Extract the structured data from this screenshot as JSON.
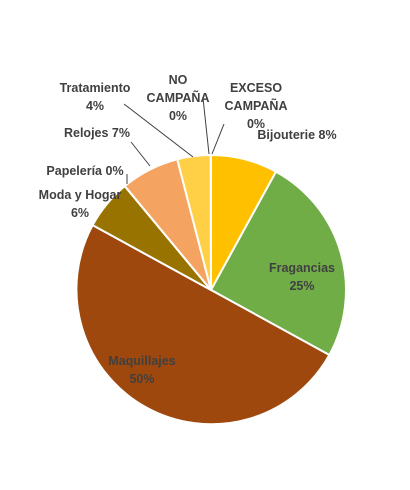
{
  "chart_data": {
    "type": "pie",
    "title": "",
    "start_angle_deg": 0,
    "direction": "clockwise",
    "slices": [
      {
        "name": "Bijouterie",
        "value": 8,
        "color": "#FFC000",
        "label_lines": [
          "Bijouterie 8%"
        ]
      },
      {
        "name": "Fragancias",
        "value": 25,
        "color": "#70AD47",
        "label_lines": [
          "Fragancias",
          "25%"
        ]
      },
      {
        "name": "Maquillajes",
        "value": 50,
        "color": "#9E480E",
        "label_lines": [
          "Maquillajes",
          "50%"
        ]
      },
      {
        "name": "Moda y Hogar",
        "value": 6,
        "color": "#997300",
        "label_lines": [
          "Moda y Hogar",
          "6%"
        ]
      },
      {
        "name": "Papelería",
        "value": 0.01,
        "color": "#A5A5A5",
        "label_lines": [
          "Papelería 0%"
        ]
      },
      {
        "name": "Relojes",
        "value": 7,
        "color": "#F4A460",
        "label_lines": [
          "Relojes 7%"
        ]
      },
      {
        "name": "Tratamiento",
        "value": 4,
        "color": "#FFD045",
        "label_lines": [
          "Tratamiento",
          "4%"
        ]
      },
      {
        "name": "NO CAMPAÑA",
        "value": 0.01,
        "color": "#4472C4",
        "label_lines": [
          "NO",
          "CAMPAÑA",
          "0%"
        ]
      },
      {
        "name": "EXCESO CAMPAÑA",
        "value": 0.01,
        "color": "#ED7D31",
        "label_lines": [
          "EXCESO",
          "CAMPAÑA",
          "0%"
        ]
      }
    ]
  }
}
